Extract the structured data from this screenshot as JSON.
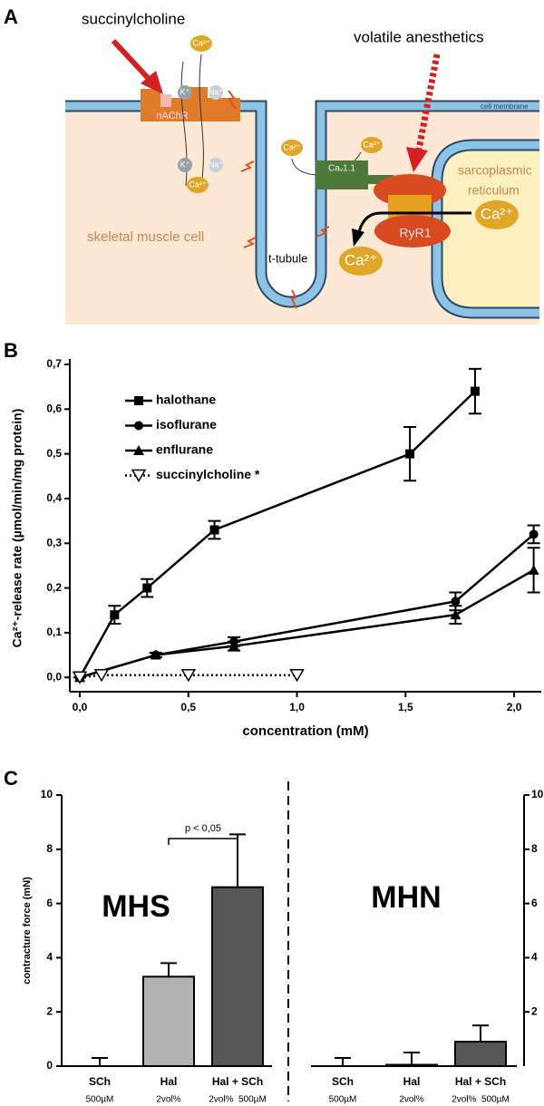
{
  "panels": [
    "A",
    "B",
    "C"
  ],
  "diagram": {
    "succinylcholine": "succinylcholine",
    "volatile": "volatile anesthetics",
    "membrane": "cell membrane",
    "cell": "skeletal muscle cell",
    "ttubule": "t-tubule",
    "sr_line1": "sarcoplasmic",
    "sr_line2": "reticulum",
    "ryr": "RyR1",
    "nachr": "nAChR",
    "cav": "Caᵥ1.1",
    "ions": [
      "Ca²⁺",
      "K⁺",
      "Na⁺",
      "K⁺",
      "Na⁺",
      "Ca²⁺",
      "Ca²⁺",
      "Ca²⁺",
      "Ca²⁺",
      "Ca²⁺"
    ]
  },
  "chart_data": [
    {
      "type": "line",
      "x_label": "concentration (mM)",
      "y_label": "Ca²⁺-release rate (µmol/min/mg protein)",
      "xlim": [
        -0.046,
        2.125
      ],
      "ylim": [
        -0.032,
        0.7
      ],
      "xticks": [
        {
          "value": 0,
          "label": "0,0"
        },
        {
          "value": 0.5,
          "label": "0,5"
        },
        {
          "value": 1,
          "label": "1,0"
        },
        {
          "value": 1.5,
          "label": "1,5"
        },
        {
          "value": 2,
          "label": "2,0"
        }
      ],
      "yticks": [
        {
          "value": 0,
          "label": "0,0"
        },
        {
          "value": 0.1,
          "label": "0,1"
        },
        {
          "value": 0.2,
          "label": "0,2"
        },
        {
          "value": 0.3,
          "label": "0,3"
        },
        {
          "value": 0.4,
          "label": "0,4"
        },
        {
          "value": 0.5,
          "label": "0,5"
        },
        {
          "value": 0.6,
          "label": "0,6"
        },
        {
          "value": 0.7,
          "label": "0,7"
        }
      ],
      "series": [
        {
          "name": "halothane",
          "color": "#000000",
          "marker": "square",
          "linestyle": "solid",
          "x": [
            0,
            0.16,
            0.31,
            0.62,
            1.52,
            1.82
          ],
          "values": [
            0,
            0.14,
            0.2,
            0.33,
            0.5,
            0.64
          ],
          "errors": [
            0,
            0.02,
            0.02,
            0.02,
            0.06,
            0.05
          ]
        },
        {
          "name": "isoflurane",
          "color": "#000000",
          "marker": "circle",
          "linestyle": "solid",
          "x": [
            0,
            0.35,
            0.71,
            1.73,
            2.09
          ],
          "values": [
            0,
            0.05,
            0.08,
            0.17,
            0.32
          ],
          "errors": [
            0,
            0.005,
            0.01,
            0.02,
            0.02
          ]
        },
        {
          "name": "enflurane",
          "color": "#000000",
          "marker": "triangle",
          "linestyle": "solid",
          "x": [
            0,
            0.35,
            0.71,
            1.73,
            2.09
          ],
          "values": [
            0,
            0.05,
            0.07,
            0.14,
            0.24
          ],
          "errors": [
            0,
            0.005,
            0.01,
            0.02,
            0.05
          ]
        },
        {
          "name": "succinylcholine *",
          "color": "#000000",
          "marker": "triangle-down-open",
          "linestyle": "dotted",
          "x": [
            0,
            0.1,
            0.5,
            1
          ],
          "values": [
            0,
            0.005,
            0.005,
            0.005
          ]
        }
      ]
    },
    {
      "type": "bar",
      "y_label": "contracture force (mN)",
      "ylim": [
        0,
        10
      ],
      "yticks": [
        0,
        2,
        4,
        6,
        8,
        10
      ],
      "y2lim": [
        0,
        10
      ],
      "y2ticks": [
        2,
        4,
        6,
        8,
        10
      ],
      "categories": [
        "SCh",
        "Hal",
        "Hal + SCh"
      ],
      "category_notes": [
        "500µM",
        "2vol%",
        "2vol%  500µM"
      ],
      "colors": [
        "#808080",
        "#b3b3b3",
        "#575757"
      ],
      "annotation": "p < 0,05",
      "groups": [
        {
          "name": "MHS",
          "values": [
            0,
            3.3,
            6.6
          ],
          "errors": [
            0.3,
            0.5,
            1.95
          ]
        },
        {
          "name": "MHN",
          "values": [
            0,
            0.05,
            0.9
          ],
          "errors": [
            0.3,
            0.45,
            0.6
          ]
        }
      ]
    }
  ]
}
